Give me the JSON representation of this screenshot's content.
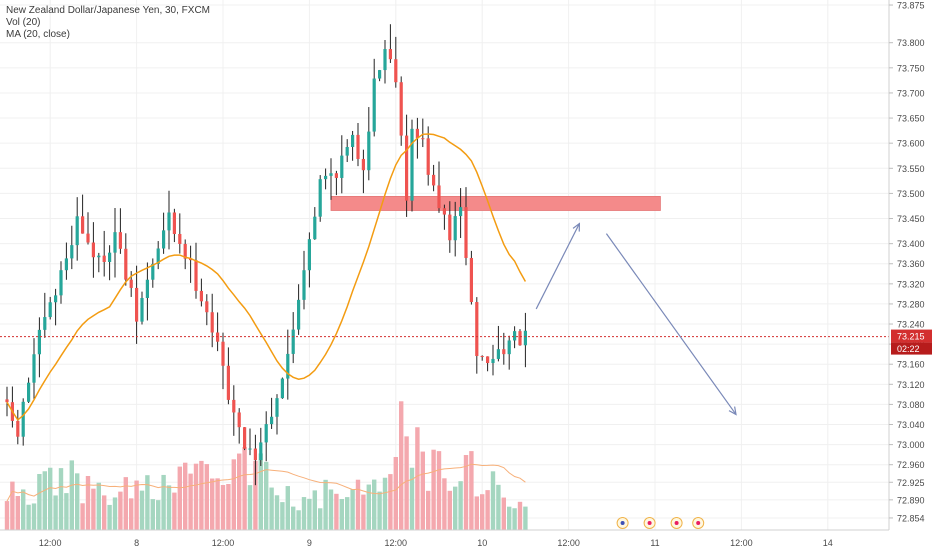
{
  "header": {
    "title": "New Zealand Dollar/Japanese Yen, 30, FXCM",
    "vol_label": "Vol (20)",
    "ma_label": "MA (20, close)"
  },
  "chart_data": {
    "type": "candlestick",
    "title": "New Zealand Dollar/Japanese Yen, 30, FXCM",
    "interval": "30",
    "ylim": [
      72.83,
      73.885
    ],
    "y_ticks": [
      73.875,
      73.8,
      73.75,
      73.7,
      73.65,
      73.6,
      73.55,
      73.5,
      73.45,
      73.4,
      73.36,
      73.32,
      73.28,
      73.24,
      73.2,
      73.16,
      73.12,
      73.08,
      73.04,
      73.0,
      72.96,
      72.925,
      72.89,
      72.854
    ],
    "x_ticks": [
      {
        "bar": 8,
        "label": "12:00"
      },
      {
        "bar": 24,
        "label": "8"
      },
      {
        "bar": 40,
        "label": "12:00"
      },
      {
        "bar": 56,
        "label": "9"
      },
      {
        "bar": 72,
        "label": "12:00"
      },
      {
        "bar": 88,
        "label": "10"
      },
      {
        "bar": 104,
        "label": "12:00"
      },
      {
        "bar": 120,
        "label": "11"
      },
      {
        "bar": 136,
        "label": "12:00"
      },
      {
        "bar": 152,
        "label": "14"
      }
    ],
    "current_price": "73.215",
    "countdown": "02:22",
    "keypoints": [
      [
        0,
        73.09
      ],
      [
        3,
        73.02
      ],
      [
        6,
        73.18
      ],
      [
        10,
        73.3
      ],
      [
        14,
        73.45
      ],
      [
        18,
        73.36
      ],
      [
        21,
        73.42
      ],
      [
        25,
        73.25
      ],
      [
        28,
        73.36
      ],
      [
        31,
        73.45
      ],
      [
        34,
        73.38
      ],
      [
        38,
        73.27
      ],
      [
        41,
        73.15
      ],
      [
        44,
        73.02
      ],
      [
        47,
        72.98
      ],
      [
        50,
        73.07
      ],
      [
        53,
        73.17
      ],
      [
        56,
        73.36
      ],
      [
        59,
        73.52
      ],
      [
        62,
        73.55
      ],
      [
        65,
        73.6
      ],
      [
        67,
        73.56
      ],
      [
        69,
        73.72
      ],
      [
        71,
        73.79
      ],
      [
        73,
        73.74
      ],
      [
        74,
        73.62
      ],
      [
        75,
        73.5
      ],
      [
        76,
        73.62
      ],
      [
        78,
        73.6
      ],
      [
        80,
        73.5
      ],
      [
        83,
        73.42
      ],
      [
        85,
        73.46
      ],
      [
        86,
        73.38
      ],
      [
        88,
        73.18
      ],
      [
        90,
        73.16
      ],
      [
        93,
        73.2
      ],
      [
        96,
        73.21
      ]
    ],
    "volume_keypoints": [
      [
        0,
        0.25
      ],
      [
        5,
        0.3
      ],
      [
        10,
        0.45
      ],
      [
        15,
        0.3
      ],
      [
        20,
        0.25
      ],
      [
        25,
        0.35
      ],
      [
        30,
        0.3
      ],
      [
        35,
        0.4
      ],
      [
        40,
        0.35
      ],
      [
        45,
        0.5
      ],
      [
        50,
        0.35
      ],
      [
        55,
        0.25
      ],
      [
        60,
        0.3
      ],
      [
        65,
        0.28
      ],
      [
        70,
        0.3
      ],
      [
        72,
        0.6
      ],
      [
        74,
        0.95
      ],
      [
        76,
        0.55
      ],
      [
        80,
        0.5
      ],
      [
        84,
        0.45
      ],
      [
        88,
        0.4
      ],
      [
        92,
        0.3
      ],
      [
        96,
        0.3
      ]
    ],
    "bars_total": 97,
    "volume_ma_period": 20,
    "price_ma_period": 20,
    "resistance_zone": {
      "bar_start": 60,
      "bar_end": 121,
      "price_low": 73.47,
      "price_high": 73.49
    },
    "projection_arrows": [
      {
        "from": [
          98,
          73.27
        ],
        "to": [
          106,
          73.44
        ]
      },
      {
        "from": [
          111,
          73.42
        ],
        "to": [
          135,
          73.06
        ]
      }
    ],
    "grid": true,
    "colors": {
      "up": "#26a69a",
      "down": "#ef5350",
      "wick": "#222222",
      "vol_up": "#a5d6c0",
      "vol_down": "#f4a8ae",
      "ma": "#f39c12",
      "vol_ma": "#f7b07a",
      "zone": "#f48a8a",
      "arrow": "#7a89b8",
      "price_line": "#d32f2f",
      "axis_text": "#4a4a4a",
      "grid": "#f0f0f0"
    }
  }
}
